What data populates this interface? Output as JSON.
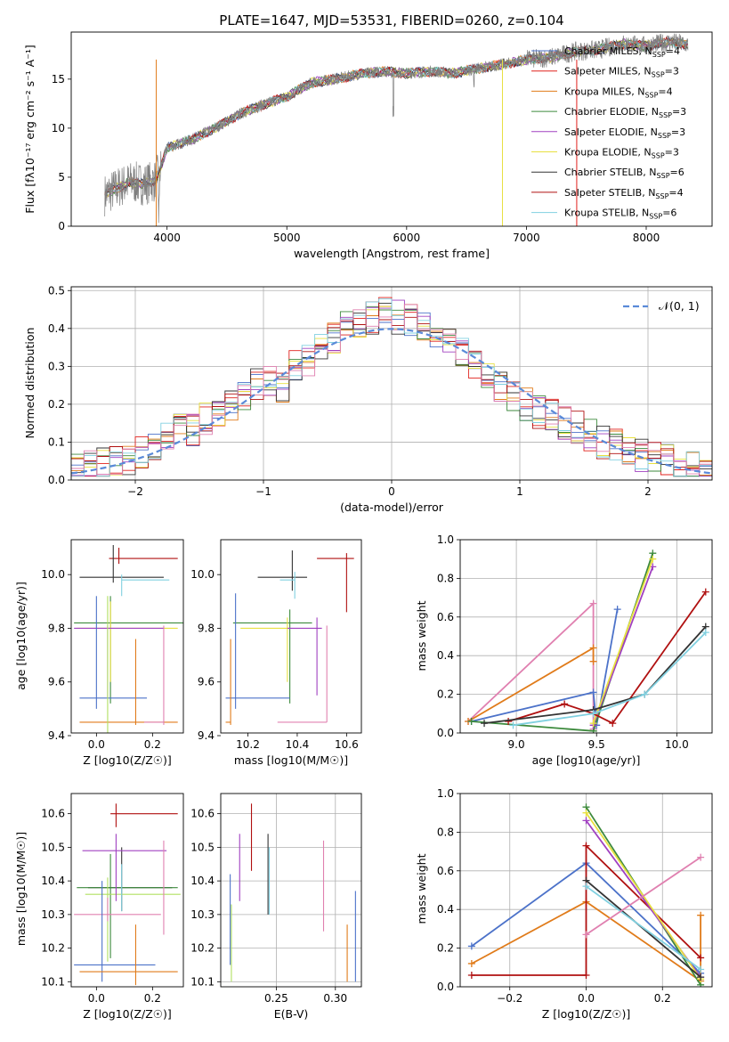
{
  "colors": {
    "Chabrier MILES": "#4c72c9",
    "Salpeter MILES": "#e0201b",
    "Kroupa MILES": "#e07b1a",
    "Chabrier ELODIE": "#3d8a3d",
    "Salpeter ELODIE": "#a040c0",
    "Kroupa ELODIE": "#e8e040",
    "Chabrier STELIB": "#333333",
    "Salpeter STELIB": "#b01010",
    "Kroupa STELIB": "#80d0e0",
    "pink": "#e080b0",
    "limegreen": "#b0e060",
    "normal": "#5a8ad8",
    "spectrum": "#7f7f7f"
  },
  "chart_data": [
    {
      "id": "spectrum",
      "type": "line",
      "title": "PLATE=1647, MJD=53531, FIBERID=0260, z=0.104",
      "xlabel": "wavelength [Angstrom, rest frame]",
      "ylabel": "Flux [fλ10⁻¹⁷ erg cm⁻² s⁻¹ A⁻¹]",
      "xlim": [
        3200,
        8550
      ],
      "ylim": [
        0,
        19.8
      ],
      "xticks": [
        "4000",
        "5000",
        "6000",
        "7000",
        "8000"
      ],
      "xtick_values": [
        4000,
        5000,
        6000,
        7000,
        8000
      ],
      "yticks": [
        "0",
        "5",
        "10",
        "15"
      ],
      "ytick_values": [
        0,
        5,
        10,
        15
      ],
      "continuum": [
        [
          3480,
          3.2
        ],
        [
          3600,
          4.0
        ],
        [
          3700,
          4.5
        ],
        [
          3800,
          4.3
        ],
        [
          3900,
          4.6
        ],
        [
          3950,
          6.0
        ],
        [
          4000,
          8.0
        ],
        [
          4200,
          8.8
        ],
        [
          4400,
          10.0
        ],
        [
          4600,
          11.4
        ],
        [
          4800,
          12.4
        ],
        [
          5000,
          13.2
        ],
        [
          5200,
          14.6
        ],
        [
          5400,
          15.0
        ],
        [
          5600,
          15.5
        ],
        [
          5800,
          15.8
        ],
        [
          6000,
          15.6
        ],
        [
          6200,
          15.8
        ],
        [
          6400,
          15.6
        ],
        [
          6600,
          16.1
        ],
        [
          6800,
          16.5
        ],
        [
          7000,
          17.0
        ],
        [
          7200,
          17.2
        ],
        [
          7400,
          17.8
        ],
        [
          7600,
          18.0
        ],
        [
          7800,
          18.6
        ],
        [
          8000,
          18.4
        ],
        [
          8200,
          18.8
        ],
        [
          8350,
          18.5
        ]
      ],
      "legend": [
        {
          "name": "Chabrier MILES, N_SSP=4",
          "label": "Chabrier MILES, N",
          "sub": "SSP",
          "tail": "=4",
          "color": "#4c72c9"
        },
        {
          "name": "Salpeter MILES, N_SSP=3",
          "label": "Salpeter MILES, N",
          "sub": "SSP",
          "tail": "=3",
          "color": "#e0201b"
        },
        {
          "name": "Kroupa MILES, N_SSP=4",
          "label": "Kroupa MILES, N",
          "sub": "SSP",
          "tail": "=4",
          "color": "#e07b1a"
        },
        {
          "name": "Chabrier ELODIE, N_SSP=3",
          "label": "Chabrier ELODIE, N",
          "sub": "SSP",
          "tail": "=3",
          "color": "#3d8a3d"
        },
        {
          "name": "Salpeter ELODIE, N_SSP=3",
          "label": "Salpeter ELODIE, N",
          "sub": "SSP",
          "tail": "=3",
          "color": "#a040c0"
        },
        {
          "name": "Kroupa ELODIE, N_SSP=3",
          "label": "Kroupa ELODIE, N",
          "sub": "SSP",
          "tail": "=3",
          "color": "#e8e040"
        },
        {
          "name": "Chabrier STELIB, N_SSP=6",
          "label": "Chabrier STELIB, N",
          "sub": "SSP",
          "tail": "=6",
          "color": "#333333"
        },
        {
          "name": "Salpeter STELIB, N_SSP=4",
          "label": "Salpeter STELIB, N",
          "sub": "SSP",
          "tail": "=4",
          "color": "#b01010"
        },
        {
          "name": "Kroupa STELIB, N_SSP=6",
          "label": "Kroupa STELIB, N",
          "sub": "SSP",
          "tail": "=6",
          "color": "#80d0e0"
        }
      ]
    },
    {
      "id": "residuals",
      "type": "line",
      "xlabel": "(data-model)/error",
      "ylabel": "Normed distribution",
      "xlim": [
        -2.5,
        2.5
      ],
      "ylim": [
        0,
        0.51
      ],
      "grid": true,
      "xticks": [
        "−2",
        "−1",
        "0",
        "1",
        "2"
      ],
      "xtick_values": [
        -2,
        -1,
        0,
        1,
        2
      ],
      "yticks": [
        "0.0",
        "0.1",
        "0.2",
        "0.3",
        "0.4",
        "0.5"
      ],
      "ytick_values": [
        0,
        0.1,
        0.2,
        0.3,
        0.4,
        0.5
      ],
      "legend_label": "𝒩(0, 1)",
      "base_hist": [
        0.03,
        0.035,
        0.04,
        0.045,
        0.05,
        0.07,
        0.09,
        0.12,
        0.15,
        0.13,
        0.16,
        0.18,
        0.2,
        0.22,
        0.25,
        0.26,
        0.24,
        0.3,
        0.32,
        0.34,
        0.38,
        0.4,
        0.42,
        0.43,
        0.44,
        0.43,
        0.42,
        0.4,
        0.38,
        0.36,
        0.33,
        0.3,
        0.27,
        0.24,
        0.22,
        0.2,
        0.18,
        0.17,
        0.15,
        0.14,
        0.12,
        0.1,
        0.09,
        0.08,
        0.065,
        0.055,
        0.05,
        0.04,
        0.035,
        0.03
      ]
    },
    {
      "id": "age-Z",
      "type": "scatter",
      "xlabel": "Z [log10(Z/Z☉)]",
      "ylabel": "age  [log10(age/yr)]",
      "xlim": [
        -0.09,
        0.31
      ],
      "ylim": [
        9.41,
        10.13
      ],
      "xticks": [
        "0.0",
        "0.2"
      ],
      "xtick_values": [
        0,
        0.2
      ],
      "yticks": [
        "9.4",
        "9.6",
        "9.8",
        "10.0"
      ],
      "ytick_values": [
        9.4,
        9.6,
        9.8,
        10.0
      ]
    },
    {
      "id": "age-mass",
      "type": "scatter",
      "xlabel": "mass [log10(M/M☉)]",
      "xlim": [
        10.09,
        10.66
      ],
      "ylim": [
        9.41,
        10.13
      ],
      "xticks": [
        "10.2",
        "10.4",
        "10.6"
      ],
      "xtick_values": [
        10.2,
        10.4,
        10.6
      ],
      "yticks": [
        "9.4",
        "9.6",
        "9.8",
        "10.0"
      ],
      "ytick_values": [
        9.4,
        9.6,
        9.8,
        10.0
      ]
    },
    {
      "id": "massweight-age",
      "type": "line",
      "xlabel": "age  [log10(age/yr)]",
      "ylabel": "mass weight",
      "xlim": [
        8.65,
        10.22
      ],
      "ylim": [
        0,
        1.0
      ],
      "grid": true,
      "xticks": [
        "9.0",
        "9.5",
        "10.0"
      ],
      "xtick_values": [
        9.0,
        9.5,
        10.0
      ],
      "yticks": [
        "0.0",
        "0.2",
        "0.4",
        "0.6",
        "0.8",
        "1.0"
      ],
      "ytick_values": [
        0,
        0.2,
        0.4,
        0.6,
        0.8,
        1.0
      ],
      "series": [
        {
          "color": "#e080b0",
          "points": [
            [
              8.7,
              0.06
            ],
            [
              9.48,
              0.67
            ],
            [
              9.48,
              0.02
            ]
          ]
        },
        {
          "color": "#e07b1a",
          "points": [
            [
              8.7,
              0.06
            ],
            [
              9.48,
              0.44
            ],
            [
              9.48,
              0.37
            ]
          ]
        },
        {
          "color": "#4c72c9",
          "points": [
            [
              8.72,
              0.06
            ],
            [
              9.48,
              0.21
            ],
            [
              9.5,
              0.04
            ],
            [
              9.63,
              0.64
            ]
          ]
        },
        {
          "color": "#3d8a3d",
          "points": [
            [
              8.72,
              0.06
            ],
            [
              9.48,
              0.01
            ],
            [
              9.85,
              0.93
            ]
          ]
        },
        {
          "color": "#a040c0",
          "points": [
            [
              9.48,
              0.04
            ],
            [
              9.85,
              0.86
            ]
          ]
        },
        {
          "color": "#e8e040",
          "points": [
            [
              9.48,
              0.05
            ],
            [
              9.85,
              0.9
            ]
          ]
        },
        {
          "color": "#b01010",
          "points": [
            [
              8.95,
              0.06
            ],
            [
              9.3,
              0.15
            ],
            [
              9.48,
              0.1
            ],
            [
              9.6,
              0.05
            ],
            [
              10.18,
              0.73
            ]
          ]
        },
        {
          "color": "#333333",
          "points": [
            [
              8.8,
              0.05
            ],
            [
              9.48,
              0.12
            ],
            [
              9.8,
              0.2
            ],
            [
              10.18,
              0.55
            ]
          ]
        },
        {
          "color": "#80d0e0",
          "points": [
            [
              8.98,
              0.04
            ],
            [
              9.48,
              0.1
            ],
            [
              9.8,
              0.2
            ],
            [
              10.18,
              0.52
            ]
          ]
        }
      ]
    },
    {
      "id": "mass-Z",
      "type": "scatter",
      "xlabel": "Z [log10(Z/Z☉)]",
      "ylabel": "mass [log10(M/M☉)]",
      "xlim": [
        -0.09,
        0.31
      ],
      "ylim": [
        10.085,
        10.66
      ],
      "xticks": [
        "0.0",
        "0.2"
      ],
      "xtick_values": [
        0,
        0.2
      ],
      "yticks": [
        "10.1",
        "10.2",
        "10.3",
        "10.4",
        "10.5",
        "10.6"
      ],
      "ytick_values": [
        10.1,
        10.2,
        10.3,
        10.4,
        10.5,
        10.6
      ]
    },
    {
      "id": "mass-EBV",
      "type": "scatter",
      "xlabel": "E(B-V)",
      "xlim": [
        0.203,
        0.322
      ],
      "ylim": [
        10.085,
        10.66
      ],
      "grid": true,
      "xticks": [
        "0.25",
        "0.30"
      ],
      "xtick_values": [
        0.25,
        0.3
      ],
      "yticks": [
        "10.1",
        "10.2",
        "10.3",
        "10.4",
        "10.5",
        "10.6"
      ],
      "ytick_values": [
        10.1,
        10.2,
        10.3,
        10.4,
        10.5,
        10.6
      ]
    },
    {
      "id": "massweight-Z",
      "type": "line",
      "xlabel": "Z [log10(Z/Z☉)]",
      "ylabel": "mass weight",
      "xlim": [
        -0.33,
        0.33
      ],
      "ylim": [
        0,
        1.0
      ],
      "grid": true,
      "xticks": [
        "−0.2",
        "0.0",
        "0.2"
      ],
      "xtick_values": [
        -0.2,
        0,
        0.2
      ],
      "yticks": [
        "0.0",
        "0.2",
        "0.4",
        "0.6",
        "0.8",
        "1.0"
      ],
      "ytick_values": [
        0,
        0.2,
        0.4,
        0.6,
        0.8,
        1.0
      ],
      "series": [
        {
          "color": "#4c72c9",
          "points": [
            [
              -0.3,
              0.21
            ],
            [
              0,
              0.64
            ],
            [
              0.3,
              0.07
            ]
          ]
        },
        {
          "color": "#e07b1a",
          "points": [
            [
              -0.3,
              0.12
            ],
            [
              0,
              0.44
            ],
            [
              0.3,
              0.03
            ],
            [
              0.3,
              0.37
            ]
          ]
        },
        {
          "color": "#b01010",
          "points": [
            [
              -0.3,
              0.06
            ],
            [
              0,
              0.06
            ],
            [
              0,
              0.73
            ],
            [
              0.3,
              0.15
            ]
          ]
        },
        {
          "color": "#3d8a3d",
          "points": [
            [
              0,
              0.93
            ],
            [
              0.3,
              0.01
            ]
          ]
        },
        {
          "color": "#a040c0",
          "points": [
            [
              0,
              0.86
            ],
            [
              0.3,
              0.05
            ]
          ]
        },
        {
          "color": "#e8e040",
          "points": [
            [
              0,
              0.9
            ],
            [
              0.3,
              0.04
            ]
          ]
        },
        {
          "color": "#333333",
          "points": [
            [
              0,
              0.55
            ],
            [
              0.3,
              0.05
            ]
          ]
        },
        {
          "color": "#80d0e0",
          "points": [
            [
              0,
              0.52
            ],
            [
              0.3,
              0.09
            ]
          ]
        },
        {
          "color": "#e080b0",
          "points": [
            [
              0,
              0.27
            ],
            [
              0.3,
              0.67
            ]
          ]
        }
      ]
    }
  ]
}
